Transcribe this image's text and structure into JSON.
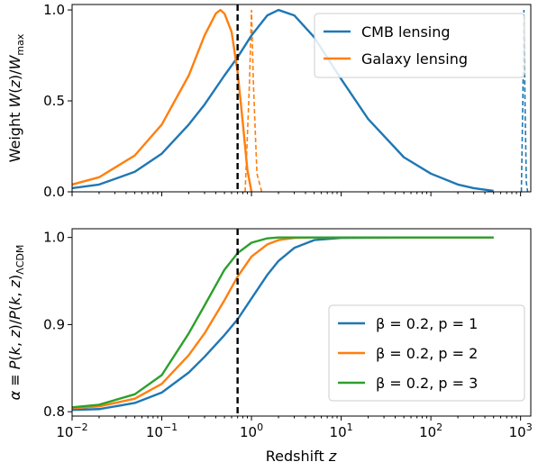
{
  "chart_data": [
    {
      "type": "line",
      "ylabel": "Weight W(z)/W_max",
      "xlabel": "",
      "xscale": "log",
      "xlim": [
        0.01,
        1300
      ],
      "ylim": [
        0,
        1.03
      ],
      "yticks": [
        0.0,
        0.5,
        1.0
      ],
      "ytick_labels": [
        "0.0",
        "0.5",
        "1.0"
      ],
      "legend_position": "top-right",
      "vline_x": 0.7,
      "series": [
        {
          "name": "CMB lensing",
          "color": "#1f77b4",
          "style": "solid",
          "x": [
            0.01,
            0.02,
            0.05,
            0.1,
            0.2,
            0.3,
            0.5,
            0.7,
            1.0,
            1.5,
            2.0,
            3.0,
            5.0,
            10,
            20,
            50,
            100,
            200,
            300,
            500
          ],
          "y": [
            0.02,
            0.04,
            0.11,
            0.21,
            0.37,
            0.48,
            0.64,
            0.74,
            0.86,
            0.97,
            1.0,
            0.97,
            0.85,
            0.62,
            0.4,
            0.19,
            0.1,
            0.04,
            0.02,
            0.005
          ]
        },
        {
          "name": "Galaxy lensing",
          "color": "#ff7f0e",
          "style": "solid",
          "x": [
            0.01,
            0.02,
            0.05,
            0.1,
            0.2,
            0.3,
            0.4,
            0.45,
            0.5,
            0.6,
            0.7,
            0.8,
            0.9,
            1.0
          ],
          "y": [
            0.04,
            0.08,
            0.2,
            0.37,
            0.64,
            0.86,
            0.98,
            1.0,
            0.98,
            0.88,
            0.66,
            0.38,
            0.12,
            0.0
          ]
        }
      ],
      "dashed_curves": [
        {
          "color": "#ff7f0e",
          "x": [
            0.85,
            0.95,
            1.0,
            1.05,
            1.15,
            1.3
          ],
          "y": [
            0.0,
            0.6,
            1.0,
            0.6,
            0.1,
            0.0
          ]
        },
        {
          "color": "#1f77b4",
          "x": [
            1020,
            1060,
            1090,
            1120,
            1160,
            1200
          ],
          "y": [
            0.0,
            0.5,
            1.0,
            0.5,
            0.05,
            0.0
          ]
        }
      ]
    },
    {
      "type": "line",
      "ylabel": "α ≡ P(k,z)/P(k,z)ΛCDM",
      "xlabel": "Redshift z",
      "xscale": "log",
      "xlim": [
        0.01,
        1300
      ],
      "ylim": [
        0.795,
        1.01
      ],
      "yticks": [
        0.8,
        0.9,
        1.0
      ],
      "ytick_labels": [
        "0.8",
        "0.9",
        "1.0"
      ],
      "xticks": [
        0.01,
        0.1,
        1,
        10,
        100,
        1000
      ],
      "xtick_labels": [
        [
          "10",
          "−2"
        ],
        [
          "10",
          "−1"
        ],
        [
          "10",
          "0"
        ],
        [
          "10",
          "1"
        ],
        [
          "10",
          "2"
        ],
        [
          "10",
          "3"
        ]
      ],
      "legend_position": "bottom-right",
      "vline_x": 0.7,
      "series": [
        {
          "name": "β = 0.2, p = 1",
          "color": "#1f77b4",
          "x": [
            0.01,
            0.02,
            0.05,
            0.1,
            0.2,
            0.3,
            0.5,
            0.7,
            1.0,
            1.5,
            2.0,
            3.0,
            5.0,
            10,
            100,
            500
          ],
          "y": [
            0.802,
            0.803,
            0.81,
            0.822,
            0.845,
            0.863,
            0.888,
            0.906,
            0.93,
            0.957,
            0.973,
            0.988,
            0.997,
            0.9995,
            1.0,
            1.0
          ]
        },
        {
          "name": "β = 0.2, p = 2",
          "color": "#ff7f0e",
          "x": [
            0.01,
            0.02,
            0.05,
            0.1,
            0.2,
            0.3,
            0.5,
            0.7,
            1.0,
            1.5,
            2.0,
            3.0,
            5.0,
            10,
            100,
            500
          ],
          "y": [
            0.804,
            0.806,
            0.815,
            0.832,
            0.865,
            0.89,
            0.928,
            0.955,
            0.978,
            0.992,
            0.997,
            0.9995,
            1.0,
            1.0,
            1.0,
            1.0
          ]
        },
        {
          "name": "β = 0.2, p = 3",
          "color": "#2ca02c",
          "x": [
            0.01,
            0.02,
            0.05,
            0.1,
            0.2,
            0.3,
            0.5,
            0.7,
            1.0,
            1.5,
            2.0,
            3.0,
            5.0,
            10,
            100,
            500
          ],
          "y": [
            0.805,
            0.808,
            0.82,
            0.842,
            0.89,
            0.922,
            0.963,
            0.982,
            0.994,
            0.999,
            1.0,
            1.0,
            1.0,
            1.0,
            1.0,
            1.0
          ]
        }
      ]
    }
  ]
}
